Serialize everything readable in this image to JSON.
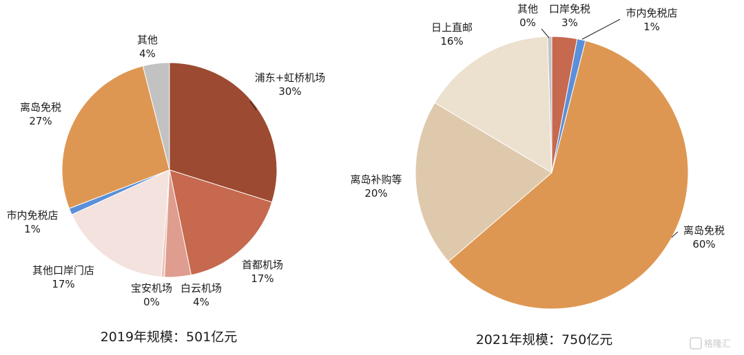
{
  "chart_data": [
    {
      "type": "pie",
      "caption": "2019年规模：501亿元",
      "slices": [
        {
          "name": "浦东+虹桥机场",
          "value": 30,
          "label_value": "30%",
          "color": "#9C4A31"
        },
        {
          "name": "首都机场",
          "value": 17,
          "label_value": "17%",
          "color": "#C6694F"
        },
        {
          "name": "白云机场",
          "value": 4,
          "label_value": "4%",
          "color": "#DE9D8E"
        },
        {
          "name": "宝安机场",
          "value": 0.5,
          "label_value": "0%",
          "color": "#EDC6BD"
        },
        {
          "name": "其他口岸门店",
          "value": 17,
          "label_value": "17%",
          "color": "#F3E2DD"
        },
        {
          "name": "市内免税店",
          "value": 1,
          "label_value": "1%",
          "color": "#5B8FD9"
        },
        {
          "name": "离岛免税",
          "value": 27,
          "label_value": "27%",
          "color": "#DE9752"
        },
        {
          "name": "其他",
          "value": 4,
          "label_value": "4%",
          "color": "#C2C2C2"
        }
      ]
    },
    {
      "type": "pie",
      "caption": "2021年规模：750亿元",
      "slices": [
        {
          "name": "口岸免税",
          "value": 3,
          "label_value": "3%",
          "color": "#C6694F"
        },
        {
          "name": "市内免税店",
          "value": 1,
          "label_value": "1%",
          "color": "#5B8FD9"
        },
        {
          "name": "离岛免税",
          "value": 60,
          "label_value": "60%",
          "color": "#DE9752"
        },
        {
          "name": "离岛补购等",
          "value": 20,
          "label_value": "20%",
          "color": "#DFC9AC"
        },
        {
          "name": "日上直邮",
          "value": 16,
          "label_value": "16%",
          "color": "#ECE0CF"
        },
        {
          "name": "其他",
          "value": 0.5,
          "label_value": "0%",
          "color": "#C2C2C2"
        }
      ]
    }
  ],
  "watermark": "格隆汇"
}
